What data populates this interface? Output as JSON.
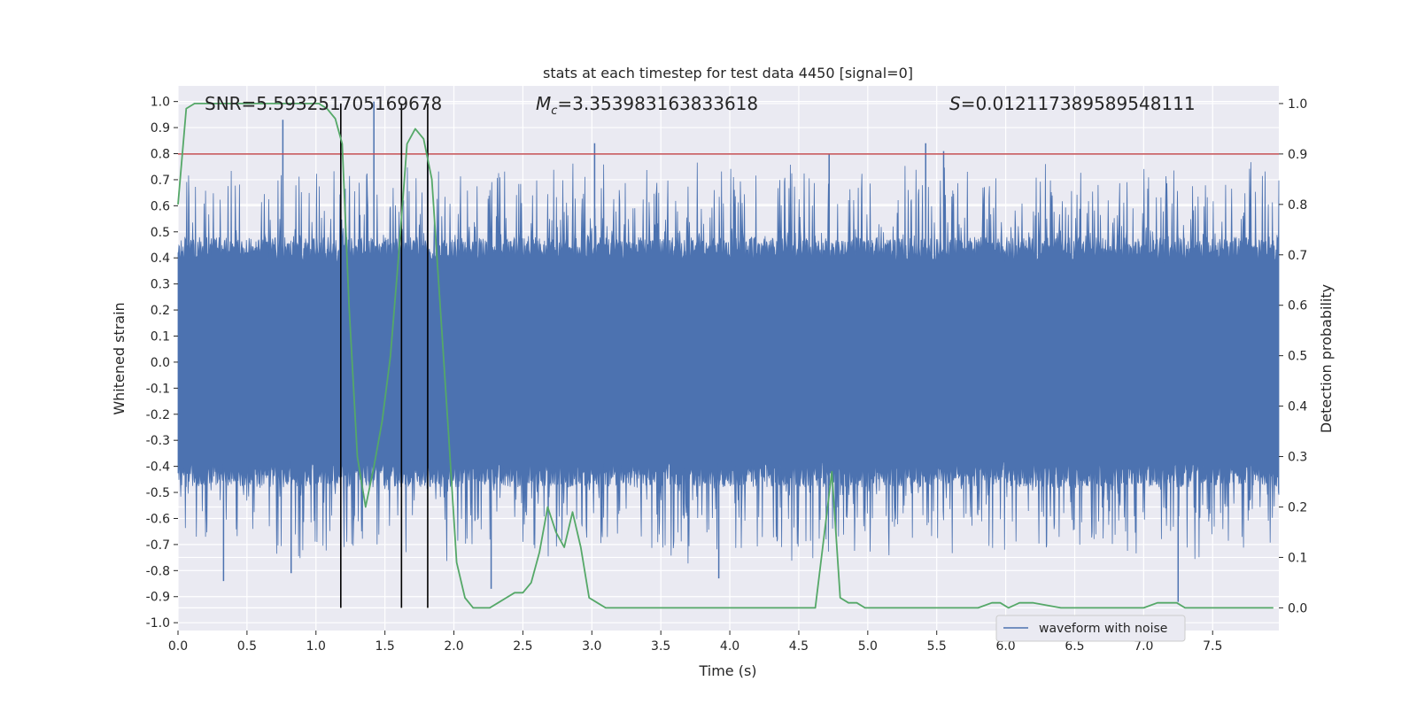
{
  "chart_data": {
    "type": "line",
    "title": "stats at each timestep for test data 4450 [signal=0]",
    "xlabel": "Time (s)",
    "ylabel": "Whitened strain",
    "ylabel_right": "Detection probability",
    "xlim": [
      0.0,
      7.98
    ],
    "ylim": [
      -1.03,
      1.06
    ],
    "ylim_right": [
      -0.045,
      1.035
    ],
    "x_ticks": [
      "0.0",
      "0.5",
      "1.0",
      "1.5",
      "2.0",
      "2.5",
      "3.0",
      "3.5",
      "4.0",
      "4.5",
      "5.0",
      "5.5",
      "6.0",
      "6.5",
      "7.0",
      "7.5"
    ],
    "x_tick_values": [
      0.0,
      0.5,
      1.0,
      1.5,
      2.0,
      2.5,
      3.0,
      3.5,
      4.0,
      4.5,
      5.0,
      5.5,
      6.0,
      6.5,
      7.0,
      7.5
    ],
    "y_ticks": [
      "1.0",
      "0.9",
      "0.8",
      "0.7",
      "0.6",
      "0.5",
      "0.4",
      "0.3",
      "0.2",
      "0.1",
      "0.0",
      "-0.1",
      "-0.2",
      "-0.3",
      "-0.4",
      "-0.5",
      "-0.6",
      "-0.7",
      "-0.8",
      "-0.9",
      "-1.0"
    ],
    "y_tick_values": [
      1.0,
      0.9,
      0.8,
      0.7,
      0.6,
      0.5,
      0.4,
      0.3,
      0.2,
      0.1,
      0.0,
      -0.1,
      -0.2,
      -0.3,
      -0.4,
      -0.5,
      -0.6,
      -0.7,
      -0.8,
      -0.9,
      -1.0
    ],
    "y_ticks_right": [
      "1.0",
      "0.9",
      "0.8",
      "0.7",
      "0.6",
      "0.5",
      "0.4",
      "0.3",
      "0.2",
      "0.1",
      "0.0"
    ],
    "y_tick_values_right": [
      1.0,
      0.9,
      0.8,
      0.7,
      0.6,
      0.5,
      0.4,
      0.3,
      0.2,
      0.1,
      0.0
    ],
    "annotations": {
      "snr": "SNR=5.593251705169678",
      "mc_symbol": "M",
      "mc_sub": "c",
      "mc_value": "=3.353983163833618",
      "s_symbol": "S",
      "s_value": "=0.012117389589548111"
    },
    "legend": {
      "label": "waveform with noise",
      "position": "lower-right"
    },
    "threshold": {
      "value": 0.9,
      "axis": "right",
      "color": "#c44e52"
    },
    "vertical_lines": [
      1.18,
      1.62,
      1.81
    ],
    "waveform": {
      "name": "waveform with noise",
      "color": "#4c72b0",
      "sample_rate_hz": 2048,
      "typical_amplitude": 0.38,
      "peak_max": 1.0,
      "peak_min": -0.92,
      "peaks": [
        {
          "t": 0.76,
          "v": 0.93
        },
        {
          "t": 1.42,
          "v": 1.0
        },
        {
          "t": 1.81,
          "v": 0.85
        },
        {
          "t": 3.02,
          "v": 0.84
        },
        {
          "t": 4.72,
          "v": 0.8
        },
        {
          "t": 5.42,
          "v": 0.84
        },
        {
          "t": 5.55,
          "v": 0.81
        },
        {
          "t": 7.25,
          "v": -0.92
        },
        {
          "t": 0.33,
          "v": -0.84
        },
        {
          "t": 0.82,
          "v": -0.81
        },
        {
          "t": 2.27,
          "v": -0.87
        },
        {
          "t": 3.92,
          "v": -0.83
        }
      ]
    },
    "series": [
      {
        "name": "detection probability",
        "axis": "right",
        "color": "#55a868",
        "x": [
          0.0,
          0.06,
          0.12,
          0.18,
          0.24,
          0.3,
          0.36,
          0.42,
          0.48,
          0.54,
          0.6,
          0.66,
          0.72,
          0.78,
          0.84,
          0.9,
          0.96,
          1.02,
          1.08,
          1.14,
          1.19,
          1.24,
          1.3,
          1.36,
          1.42,
          1.48,
          1.54,
          1.6,
          1.66,
          1.72,
          1.78,
          1.84,
          1.9,
          1.96,
          2.02,
          2.08,
          2.14,
          2.2,
          2.26,
          2.32,
          2.38,
          2.44,
          2.5,
          2.56,
          2.62,
          2.68,
          2.74,
          2.8,
          2.86,
          2.92,
          2.98,
          3.04,
          3.1,
          3.3,
          3.5,
          3.7,
          3.9,
          4.1,
          4.3,
          4.5,
          4.62,
          4.7,
          4.74,
          4.8,
          4.86,
          4.92,
          4.98,
          5.04,
          5.2,
          5.4,
          5.6,
          5.8,
          5.9,
          5.96,
          6.02,
          6.1,
          6.2,
          6.4,
          6.6,
          6.8,
          7.0,
          7.1,
          7.18,
          7.24,
          7.3,
          7.5,
          7.7,
          7.94
        ],
        "values": [
          0.8,
          0.99,
          1.0,
          1.0,
          1.0,
          1.0,
          1.0,
          1.0,
          1.0,
          1.0,
          1.0,
          1.0,
          1.0,
          1.0,
          1.0,
          1.0,
          1.0,
          1.0,
          0.99,
          0.97,
          0.92,
          0.6,
          0.3,
          0.2,
          0.28,
          0.37,
          0.5,
          0.7,
          0.92,
          0.95,
          0.93,
          0.85,
          0.6,
          0.35,
          0.09,
          0.02,
          0.0,
          0.0,
          0.0,
          0.01,
          0.02,
          0.03,
          0.03,
          0.05,
          0.11,
          0.2,
          0.15,
          0.12,
          0.19,
          0.12,
          0.02,
          0.01,
          0.0,
          0.0,
          0.0,
          0.0,
          0.0,
          0.0,
          0.0,
          0.0,
          0.0,
          0.18,
          0.27,
          0.02,
          0.01,
          0.01,
          0.0,
          0.0,
          0.0,
          0.0,
          0.0,
          0.0,
          0.01,
          0.01,
          0.0,
          0.01,
          0.01,
          0.0,
          0.0,
          0.0,
          0.0,
          0.01,
          0.01,
          0.01,
          0.0,
          0.0,
          0.0,
          0.0
        ]
      }
    ]
  }
}
